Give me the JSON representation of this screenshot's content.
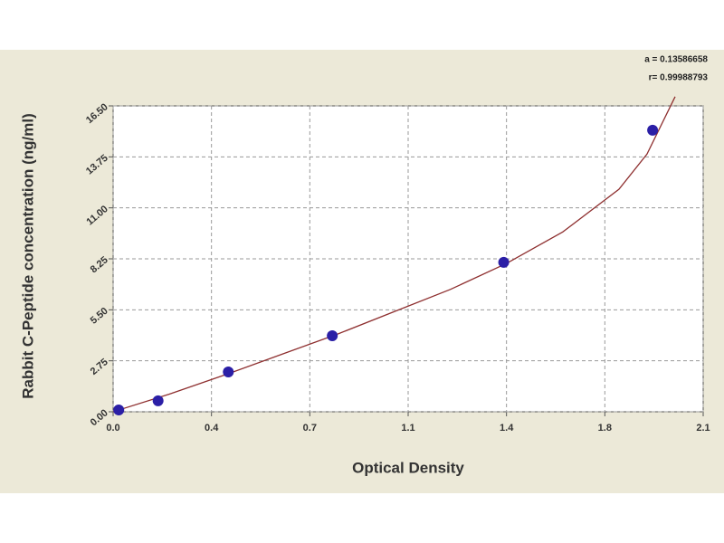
{
  "chart_data": {
    "type": "scatter",
    "x_label": "Optical Density",
    "y_label": "Rabbit C-Peptide concentration (ng/ml)",
    "annotations": [
      "a = 0.13586658",
      "r= 0.99988793"
    ],
    "xlim": [
      0,
      2.1
    ],
    "ylim": [
      0,
      16.5
    ],
    "xticks": [
      {
        "value": 0,
        "label": "0.0"
      },
      {
        "value": 0.35,
        "label": "0.4"
      },
      0.7,
      {
        "value": 1.05,
        "label": "1.1"
      },
      1.4,
      {
        "value": 1.75,
        "label": "1.8"
      },
      2.1
    ],
    "yticks": [
      {
        "value": 0,
        "label": "0.00"
      },
      2.75,
      {
        "value": 5.5,
        "label": "5.50"
      },
      8.25,
      {
        "value": 11,
        "label": "11.00"
      },
      13.75,
      {
        "value": 16.5,
        "label": "16.50"
      }
    ],
    "grid": true,
    "points": {
      "color": "#2b1fa6",
      "x": [
        0.02,
        0.16,
        0.41,
        0.78,
        1.39,
        1.92
      ],
      "y": [
        0.1,
        0.59,
        2.15,
        4.1,
        8.06,
        15.19
      ]
    },
    "fit": {
      "color": "#8e2f2f",
      "x": [
        0,
        0.2,
        0.4,
        0.6,
        0.8,
        1.0,
        1.2,
        1.4,
        1.6,
        1.8,
        1.9,
        2.0
      ],
      "y": [
        0,
        0.95,
        2.0,
        3.1,
        4.2,
        5.4,
        6.6,
        8.0,
        9.7,
        12.0,
        13.9,
        17.0
      ]
    }
  }
}
